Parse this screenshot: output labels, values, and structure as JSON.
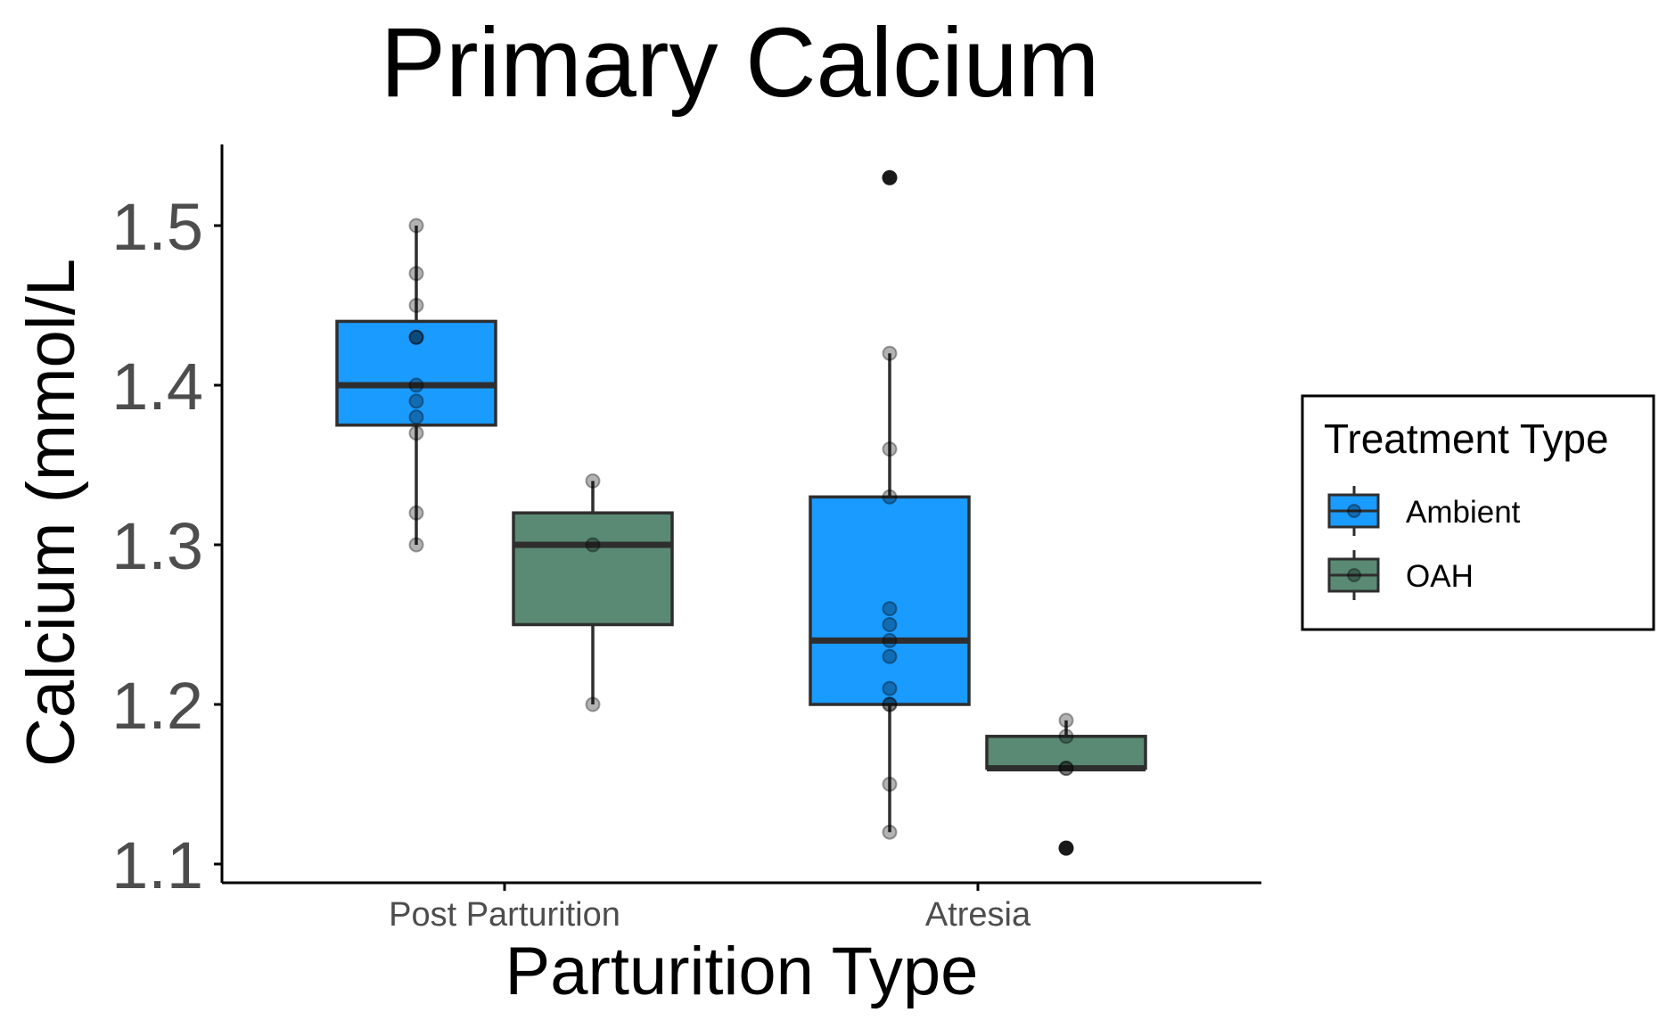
{
  "chart_data": {
    "type": "boxplot",
    "title": "Primary Calcium",
    "xlabel": "Parturition Type",
    "ylabel": "Calcium (mmol/L",
    "categories": [
      "Post Parturition",
      "Atresia"
    ],
    "ylim": [
      1.09,
      1.55
    ],
    "yticks": [
      "1.1",
      "1.2",
      "1.3",
      "1.4",
      "1.5"
    ],
    "grid": false,
    "legend": {
      "title": "Treatment Type",
      "position": "right",
      "entries": [
        "Ambient",
        "OAH"
      ]
    },
    "colors": {
      "Ambient": "#1a9bff",
      "OAH": "#5a8a74",
      "outline": "#2e2e2e"
    },
    "series": [
      {
        "name": "Ambient",
        "boxes": [
          {
            "category": "Post Parturition",
            "whisker_low": 1.3,
            "q1": 1.375,
            "median": 1.4,
            "q3": 1.44,
            "whisker_high": 1.5,
            "outliers": [],
            "points": [
              1.5,
              1.47,
              1.45,
              1.43,
              1.43,
              1.4,
              1.39,
              1.38,
              1.37,
              1.32,
              1.3
            ]
          },
          {
            "category": "Atresia",
            "whisker_low": 1.12,
            "q1": 1.2,
            "median": 1.24,
            "q3": 1.33,
            "whisker_high": 1.42,
            "outliers": [
              1.53
            ],
            "points": [
              1.42,
              1.36,
              1.33,
              1.26,
              1.25,
              1.24,
              1.23,
              1.21,
              1.2,
              1.2,
              1.15,
              1.12
            ]
          }
        ]
      },
      {
        "name": "OAH",
        "boxes": [
          {
            "category": "Post Parturition",
            "whisker_low": 1.2,
            "q1": 1.25,
            "median": 1.3,
            "q3": 1.32,
            "whisker_high": 1.34,
            "outliers": [],
            "points": [
              1.34,
              1.3,
              1.2
            ]
          },
          {
            "category": "Atresia",
            "whisker_low": 1.16,
            "q1": 1.16,
            "median": 1.16,
            "q3": 1.18,
            "whisker_high": 1.19,
            "outliers": [
              1.11
            ],
            "points": [
              1.19,
              1.18,
              1.16,
              1.16
            ]
          }
        ]
      }
    ]
  }
}
